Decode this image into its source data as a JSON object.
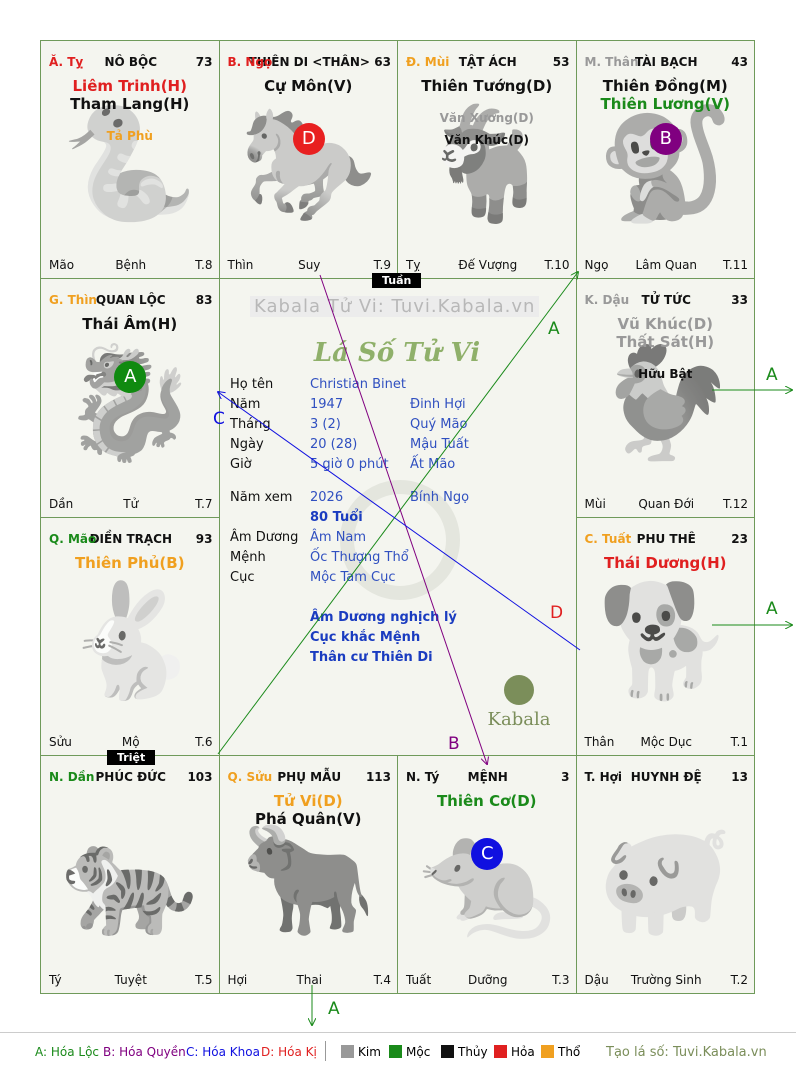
{
  "palaces": [
    {
      "id": "ty",
      "branch": "Ă. Tỵ",
      "branch_color": "#e02020",
      "name": "NÔ BỘC",
      "num": "73",
      "stars": [
        {
          "t": "Liêm Trinh(H)",
          "c": "#e02020"
        },
        {
          "t": "Tham Lang(H)",
          "c": "#111111"
        }
      ],
      "minor": [
        {
          "t": "Tả Phù",
          "c": "#f0a020"
        }
      ],
      "f_left": "Mão",
      "f_mid": "Bệnh",
      "f_right": "T.8"
    },
    {
      "id": "ngo",
      "branch": "B. Ngọ",
      "branch_color": "#e02020",
      "name": "THIÊN DI <THÂN>",
      "num": "63",
      "stars": [
        {
          "t": "Cự Môn(V)",
          "c": "#111111"
        }
      ],
      "minor": [],
      "f_left": "Thìn",
      "f_mid": "Suy",
      "f_right": "T.9",
      "circle": {
        "letter": "D",
        "color": "#e82020"
      }
    },
    {
      "id": "mui",
      "branch": "Đ. Mùi",
      "branch_color": "#f0a020",
      "name": "TẬT ÁCH",
      "num": "53",
      "stars": [
        {
          "t": "Thiên Tướng(D)",
          "c": "#111111"
        }
      ],
      "minor": [
        {
          "t": "Văn Xương(D)",
          "c": "#999999"
        },
        {
          "t": "Văn Khúc(D)",
          "c": "#111111"
        }
      ],
      "f_left": "Tỵ",
      "f_mid": "Đế Vượng",
      "f_right": "T.10"
    },
    {
      "id": "than",
      "branch": "M. Thân",
      "branch_color": "#999999",
      "name": "TÀI BẠCH",
      "num": "43",
      "stars": [
        {
          "t": "Thiên Đồng(M)",
          "c": "#111111"
        },
        {
          "t": "Thiên Lương(V)",
          "c": "#1a8a1a"
        }
      ],
      "minor": [],
      "f_left": "Ngọ",
      "f_mid": "Lâm Quan",
      "f_right": "T.11",
      "circle": {
        "letter": "B",
        "color": "#800080"
      }
    },
    {
      "id": "thin",
      "branch": "G. Thìn",
      "branch_color": "#f0a020",
      "name": "QUAN LỘC",
      "num": "83",
      "stars": [
        {
          "t": "Thái Âm(H)",
          "c": "#111111"
        }
      ],
      "minor": [],
      "f_left": "Dần",
      "f_mid": "Tử",
      "f_right": "T.7",
      "circle": {
        "letter": "A",
        "color": "#108a10"
      }
    },
    {
      "id": "dau",
      "branch": "K. Dậu",
      "branch_color": "#999999",
      "name": "TỬ TỨC",
      "num": "33",
      "stars": [
        {
          "t": "Vũ Khúc(D)",
          "c": "#999999"
        },
        {
          "t": "Thất Sát(H)",
          "c": "#999999"
        }
      ],
      "minor": [
        {
          "t": "Hữu Bật",
          "c": "#111111"
        }
      ],
      "f_left": "Mùi",
      "f_mid": "Quan Đới",
      "f_right": "T.12"
    },
    {
      "id": "mao",
      "branch": "Q. Mão",
      "branch_color": "#1a8a1a",
      "name": "ĐIỀN TRẠCH",
      "num": "93",
      "stars": [
        {
          "t": "Thiên Phủ(B)",
          "c": "#f0a020"
        }
      ],
      "minor": [],
      "f_left": "Sửu",
      "f_mid": "Mộ",
      "f_right": "T.6"
    },
    {
      "id": "tuat",
      "branch": "C. Tuất",
      "branch_color": "#f0a020",
      "name": "PHU THÊ",
      "num": "23",
      "stars": [
        {
          "t": "Thái Dương(H)",
          "c": "#e02020"
        }
      ],
      "minor": [],
      "f_left": "Thân",
      "f_mid": "Mộc Dục",
      "f_right": "T.1"
    },
    {
      "id": "dan",
      "branch": "N. Dần",
      "branch_color": "#1a8a1a",
      "name": "PHÚC ĐỨC",
      "num": "103",
      "stars": [],
      "minor": [],
      "f_left": "Tý",
      "f_mid": "Tuyệt",
      "f_right": "T.5"
    },
    {
      "id": "suu",
      "branch": "Q. Sửu",
      "branch_color": "#f0a020",
      "name": "PHỤ MẪU",
      "num": "113",
      "stars": [
        {
          "t": "Tử Vi(D)",
          "c": "#f0a020"
        },
        {
          "t": "Phá Quân(V)",
          "c": "#111111"
        }
      ],
      "minor": [],
      "f_left": "Hợi",
      "f_mid": "Thai",
      "f_right": "T.4"
    },
    {
      "id": "ty2",
      "branch": "N. Tý",
      "branch_color": "#111111",
      "name": "MỆNH",
      "num": "3",
      "stars": [
        {
          "t": "Thiên Cơ(D)",
          "c": "#1a8a1a"
        }
      ],
      "minor": [],
      "f_left": "Tuất",
      "f_mid": "Dưỡng",
      "f_right": "T.3",
      "circle": {
        "letter": "C",
        "color": "#1010e0"
      }
    },
    {
      "id": "hoi",
      "branch": "T. Hợi",
      "branch_color": "#111111",
      "name": "HUYNH ĐỆ",
      "num": "13",
      "stars": [],
      "minor": [],
      "f_left": "Dậu",
      "f_mid": "Trường Sinh",
      "f_right": "T.2"
    }
  ],
  "center": {
    "watermark": "Kabala Tử Vi: Tuvi.Kabala.vn",
    "title": "Lá Số Tử Vi",
    "tuan": "Tuần",
    "triet": "Triệt",
    "logo": "Kabala",
    "rows": [
      {
        "k": "Họ tên",
        "v": "Christian Binet",
        "w": ""
      },
      {
        "k": "Năm",
        "v": "1947",
        "w": "Đinh Hợi"
      },
      {
        "k": "Tháng",
        "v": "3  (2)",
        "w": "Quý Mão"
      },
      {
        "k": "Ngày",
        "v": "20  (28)",
        "w": "Mậu Tuất"
      },
      {
        "k": "Giờ",
        "v": "5 giờ 0 phút",
        "w": "Ất Mão"
      },
      {
        "k": "Năm xem",
        "v": "2026",
        "w": "Bính Ngọ"
      },
      {
        "k": "",
        "v": "80 Tuổi",
        "w": ""
      },
      {
        "k": "Âm Dương",
        "v": "Âm Nam",
        "w": ""
      },
      {
        "k": "Mệnh",
        "v": "Ốc Thượng Thổ",
        "w": ""
      },
      {
        "k": "Cục",
        "v": "Mộc Tam Cục",
        "w": ""
      }
    ],
    "notes": [
      "Âm Dương nghịch lý",
      "Cục khắc Mệnh",
      "Thân cư Thiên Di"
    ]
  },
  "arrow_labels": {
    "a1": "A",
    "a2": "A",
    "a3": "A",
    "a4": "A",
    "b": "B",
    "c": "C",
    "d": "D"
  },
  "legend": {
    "hoa": [
      {
        "t": "A: Hóa Lộc",
        "c": "#1a8a1a"
      },
      {
        "t": "B: Hóa Quyền",
        "c": "#800080"
      },
      {
        "t": "C: Hóa Khoa",
        "c": "#1010e0"
      },
      {
        "t": "D: Hóa Kị",
        "c": "#e02020"
      }
    ],
    "elements": [
      {
        "t": "Kim",
        "c": "#999999"
      },
      {
        "t": "Mộc",
        "c": "#1a8a1a"
      },
      {
        "t": "Thủy",
        "c": "#111111"
      },
      {
        "t": "Hỏa",
        "c": "#e02020"
      },
      {
        "t": "Thổ",
        "c": "#f0a020"
      }
    ],
    "credit": "Tạo lá số: Tuvi.Kabala.vn"
  }
}
